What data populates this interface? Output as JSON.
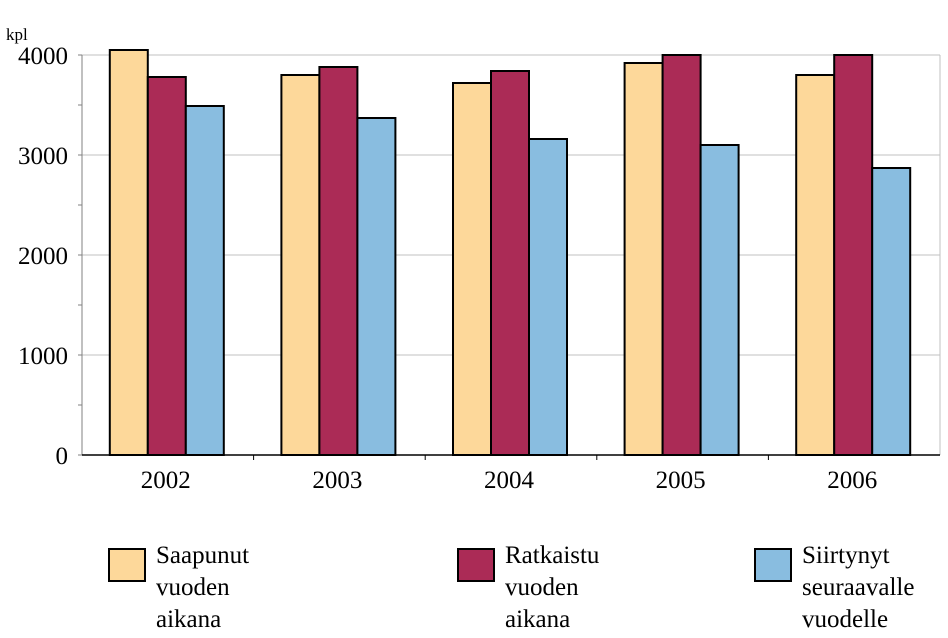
{
  "chart_data": {
    "type": "bar",
    "ylabel": "kpl",
    "categories": [
      "2002",
      "2003",
      "2004",
      "2005",
      "2006"
    ],
    "ylim": [
      0,
      4000
    ],
    "yticks": [
      "0",
      "1000",
      "2000",
      "3000",
      "4000"
    ],
    "grid": true,
    "legend_position": "bottom",
    "series": [
      {
        "name": "Saapunut vuoden aikana",
        "color": "#fdd89a",
        "values": [
          4050,
          3800,
          3720,
          3920,
          3800
        ]
      },
      {
        "name": "Ratkaistu vuoden aikana",
        "color": "#ab2b56",
        "values": [
          3780,
          3880,
          3840,
          4000,
          4000
        ]
      },
      {
        "name": "Siirtynyt seuraavalle vuodelle",
        "color": "#89bde0",
        "values": [
          3490,
          3370,
          3160,
          3100,
          2870
        ]
      }
    ]
  },
  "legend": [
    {
      "label": "Saapunut\nvuoden\naikana",
      "color": "#fdd89a"
    },
    {
      "label": "Ratkaistu\nvuoden\naikana",
      "color": "#ab2b56"
    },
    {
      "label": "Siirtynyt\nseuraavalle\nvuodelle",
      "color": "#89bde0"
    }
  ]
}
